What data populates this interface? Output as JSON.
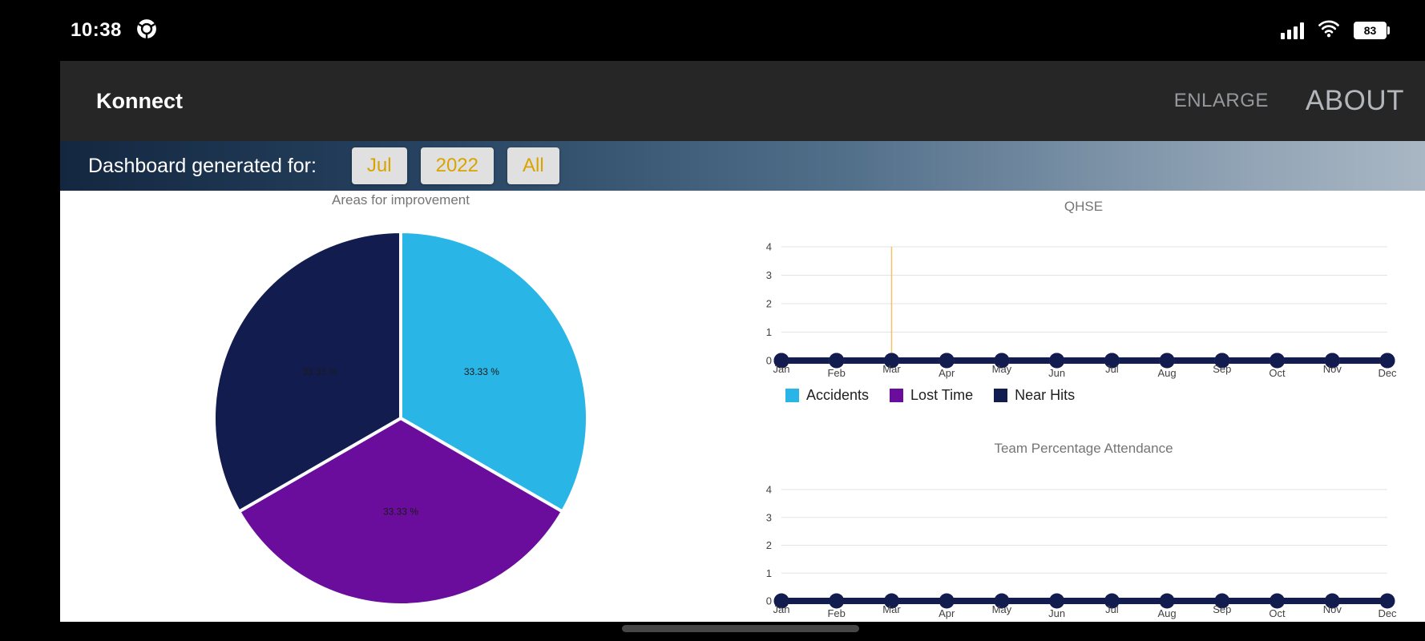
{
  "status_bar": {
    "time": "10:38",
    "battery_level": "83"
  },
  "app_bar": {
    "title": "Konnect",
    "enlarge_label": "ENLARGE",
    "about_label": "ABOUT"
  },
  "filter_banner": {
    "label": "Dashboard generated for:",
    "accent_color": "#d9a400",
    "filters": [
      {
        "label": "Jul"
      },
      {
        "label": "2022"
      },
      {
        "label": "All"
      }
    ]
  },
  "chart_data": [
    {
      "type": "pie",
      "title": "Areas for improvement",
      "values": [
        33.33,
        33.33,
        33.33
      ],
      "slice_labels": [
        "33.33 %",
        "33.33 %",
        "33.33 %"
      ],
      "colors": [
        "#29b6e6",
        "#6a0d9c",
        "#131c4e"
      ]
    },
    {
      "type": "line",
      "title": "QHSE",
      "categories": [
        "Jan",
        "Feb",
        "Mar",
        "Apr",
        "May",
        "Jun",
        "Jul",
        "Aug",
        "Sep",
        "Oct",
        "Nov",
        "Dec"
      ],
      "series": [
        {
          "name": "Accidents",
          "color": "#29b6e6",
          "values": [
            0,
            0,
            0,
            0,
            0,
            0,
            0,
            0,
            0,
            0,
            0,
            0
          ]
        },
        {
          "name": "Lost Time",
          "color": "#6a0d9c",
          "values": [
            0,
            0,
            0,
            0,
            0,
            0,
            0,
            0,
            0,
            0,
            0,
            0
          ]
        },
        {
          "name": "Near Hits",
          "color": "#131c4e",
          "values": [
            0,
            0,
            0,
            0,
            0,
            0,
            0,
            0,
            0,
            0,
            0,
            0
          ]
        }
      ],
      "ylim": [
        0,
        4
      ],
      "yticks": [
        0,
        1,
        2,
        3,
        4
      ],
      "legend_position": "bottom",
      "crosshair": {
        "month": "Mar",
        "color": "#f0c36c"
      }
    },
    {
      "type": "line",
      "title": "Team Percentage Attendance",
      "categories": [
        "Jan",
        "Feb",
        "Mar",
        "Apr",
        "May",
        "Jun",
        "Jul",
        "Aug",
        "Sep",
        "Oct",
        "Nov",
        "Dec"
      ],
      "series": [
        {
          "color": "#131c4e",
          "values": [
            0,
            0,
            0,
            0,
            0,
            0,
            0,
            0,
            0,
            0,
            0,
            0
          ]
        }
      ],
      "ylim": [
        0,
        4
      ],
      "yticks": [
        0,
        1,
        2,
        3,
        4
      ],
      "legend_position": "none"
    }
  ]
}
